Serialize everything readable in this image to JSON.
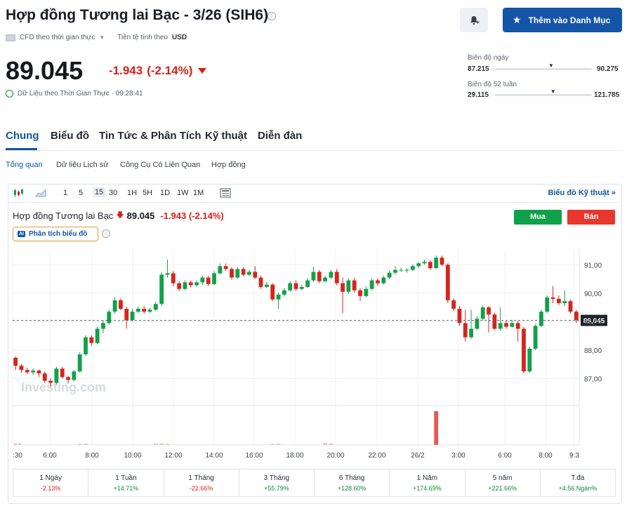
{
  "header": {
    "title": "Hợp đồng Tương lai Bạc - 3/26 (SIH6)",
    "info_icon": "info-icon",
    "bell_icon": "bell-plus-icon",
    "watchlist_label": "Thêm vào Danh Mục",
    "watchlist_icon": "star-icon"
  },
  "subheader": {
    "cfd_label": "CFD theo thời gian thực",
    "currency_label": "Tiền tệ tính theo",
    "currency_value": "USD"
  },
  "quote": {
    "price": "89.045",
    "change": "-1.943",
    "change_pct": "(-2.14%)",
    "realtime_label": "Dữ Liệu theo Thời Gian Thực · 09:28:41",
    "colors": {
      "down": "#d91e18",
      "up": "#0c8a3a"
    }
  },
  "ranges": {
    "day": {
      "label": "Biên độ ngày",
      "low": "87.215",
      "high": "90.275",
      "position": 0.58
    },
    "week52": {
      "label": "Biên độ 52 tuần",
      "low": "29.115",
      "high": "121.785",
      "position": 0.6
    }
  },
  "tabs": [
    {
      "label": "Chung",
      "active": true
    },
    {
      "label": "Biểu đồ",
      "active": false
    },
    {
      "label": "Tin Tức & Phân Tích",
      "active": false
    },
    {
      "label": "Kỹ thuật",
      "active": false
    },
    {
      "label": "Diễn đàn",
      "active": false
    }
  ],
  "subtabs": [
    {
      "label": "Tổng quan",
      "active": true
    },
    {
      "label": "Dữ liệu Lịch sử",
      "active": false
    },
    {
      "label": "Công Cụ Có Liên Quan",
      "active": false
    },
    {
      "label": "Hợp đồng",
      "active": false
    }
  ],
  "toolbar": {
    "intervals": [
      "1",
      "5",
      "15",
      "30",
      "1H",
      "5H",
      "1D",
      "1W",
      "1M"
    ],
    "active_interval": "15",
    "tech_link": "Biểu đồ Kỹ thuật »"
  },
  "chart_header": {
    "name": "Hợp đồng Tương lai Bạc",
    "price": "89.045",
    "change": "-1.943 (-2.14%)",
    "buy_label": "Mua",
    "sell_label": "Bán",
    "ai_badge": "AI",
    "ai_label": "Phân tích biểu đồ",
    "watermark": "Investing.com"
  },
  "chart_data": {
    "type": "candlestick",
    "y_ticks": [
      "91,00",
      "90,00",
      "89,00",
      "88,00",
      "87,00"
    ],
    "ylim": [
      86.05,
      91.55
    ],
    "x_ticks": [
      ":30",
      "6:00",
      "8:00",
      "10:00",
      "12:00",
      "14:00",
      "16:00",
      "18:00",
      "20:00",
      "22:00",
      "26/2",
      "3:00",
      "6:00",
      "8:00",
      "9:3"
    ],
    "last_price_label": "89,045",
    "last_price": 89.045,
    "colors": {
      "up": "#13a04a",
      "down": "#d4261d"
    },
    "candles": [
      [
        87.73,
        87.45,
        87.78,
        87.3
      ],
      [
        87.45,
        87.3,
        87.52,
        87.2
      ],
      [
        87.3,
        87.22,
        87.38,
        87.15
      ],
      [
        87.22,
        87.28,
        87.35,
        87.12
      ],
      [
        87.28,
        87.18,
        87.32,
        87.05
      ],
      [
        87.18,
        86.92,
        87.25,
        86.85
      ],
      [
        86.92,
        86.85,
        87.0,
        86.7
      ],
      [
        86.85,
        87.35,
        87.42,
        86.8
      ],
      [
        87.35,
        87.05,
        87.42,
        87.0
      ],
      [
        87.05,
        86.95,
        87.1,
        86.82
      ],
      [
        86.95,
        87.25,
        87.3,
        86.9
      ],
      [
        87.25,
        87.85,
        87.92,
        87.2
      ],
      [
        87.85,
        88.45,
        88.52,
        87.8
      ],
      [
        88.45,
        88.25,
        88.52,
        88.15
      ],
      [
        88.25,
        88.75,
        88.82,
        88.2
      ],
      [
        88.75,
        88.95,
        89.05,
        88.6
      ],
      [
        88.95,
        89.35,
        89.42,
        88.9
      ],
      [
        89.35,
        89.75,
        89.85,
        89.28
      ],
      [
        89.75,
        89.45,
        89.82,
        89.4
      ],
      [
        89.45,
        89.05,
        89.52,
        88.75
      ],
      [
        89.05,
        89.35,
        89.45,
        89.0
      ],
      [
        89.35,
        89.45,
        89.52,
        89.3
      ],
      [
        89.45,
        89.35,
        89.55,
        89.28
      ],
      [
        89.35,
        89.42,
        89.48,
        89.3
      ],
      [
        89.42,
        89.62,
        89.7,
        89.38
      ],
      [
        89.62,
        90.65,
        90.75,
        89.55
      ],
      [
        90.65,
        90.7,
        91.18,
        90.55
      ],
      [
        90.7,
        90.35,
        90.78,
        90.25
      ],
      [
        90.35,
        90.15,
        90.42,
        90.08
      ],
      [
        90.15,
        90.38,
        90.45,
        90.1
      ],
      [
        90.38,
        90.28,
        90.45,
        90.2
      ],
      [
        90.28,
        90.38,
        90.45,
        90.22
      ],
      [
        90.38,
        90.55,
        90.62,
        90.3
      ],
      [
        90.55,
        90.32,
        90.62,
        90.25
      ],
      [
        90.32,
        90.7,
        90.78,
        90.28
      ],
      [
        90.7,
        90.95,
        91.05,
        90.65
      ],
      [
        90.95,
        90.85,
        91.05,
        90.78
      ],
      [
        90.85,
        90.55,
        90.92,
        90.48
      ],
      [
        90.55,
        90.85,
        90.92,
        90.5
      ],
      [
        90.85,
        90.65,
        90.92,
        90.58
      ],
      [
        90.65,
        90.75,
        90.82,
        90.6
      ],
      [
        90.75,
        90.55,
        90.95,
        90.5
      ],
      [
        90.55,
        90.22,
        90.62,
        90.15
      ],
      [
        90.22,
        90.3,
        90.4,
        90.18
      ],
      [
        90.3,
        89.78,
        90.35,
        89.72
      ],
      [
        89.78,
        89.95,
        90.02,
        89.45
      ],
      [
        89.95,
        90.1,
        90.18,
        89.88
      ],
      [
        90.1,
        90.35,
        90.42,
        90.05
      ],
      [
        90.35,
        90.15,
        90.45,
        90.08
      ],
      [
        90.15,
        90.22,
        90.3,
        90.1
      ],
      [
        90.22,
        90.45,
        90.52,
        90.18
      ],
      [
        90.45,
        90.75,
        90.92,
        90.4
      ],
      [
        90.75,
        90.42,
        90.82,
        90.35
      ],
      [
        90.42,
        90.55,
        90.62,
        90.38
      ],
      [
        90.55,
        90.75,
        90.82,
        90.5
      ],
      [
        90.75,
        90.35,
        90.85,
        90.28
      ],
      [
        90.35,
        90.05,
        90.55,
        89.3
      ],
      [
        90.05,
        90.45,
        90.52,
        89.98
      ],
      [
        90.45,
        90.1,
        90.55,
        90.02
      ],
      [
        90.1,
        89.9,
        90.18,
        89.72
      ],
      [
        89.9,
        90.15,
        90.25,
        89.85
      ],
      [
        90.15,
        90.45,
        90.52,
        90.1
      ],
      [
        90.45,
        90.35,
        90.52,
        90.25
      ],
      [
        90.35,
        90.55,
        90.62,
        90.3
      ],
      [
        90.55,
        90.72,
        90.8,
        90.5
      ],
      [
        90.72,
        90.82,
        90.95,
        90.65
      ],
      [
        90.82,
        90.82,
        90.9,
        90.75
      ],
      [
        90.82,
        90.82,
        90.88,
        90.72
      ],
      [
        90.82,
        90.95,
        91.02,
        90.78
      ],
      [
        90.95,
        91.05,
        91.1,
        90.88
      ],
      [
        91.05,
        91.1,
        91.18,
        91.0
      ],
      [
        91.1,
        90.88,
        91.15,
        90.82
      ],
      [
        90.88,
        91.25,
        91.32,
        90.85
      ],
      [
        91.25,
        91.0,
        91.32,
        90.95
      ],
      [
        91.0,
        89.75,
        91.05,
        89.65
      ],
      [
        89.75,
        89.45,
        89.82,
        89.38
      ],
      [
        89.45,
        88.95,
        89.55,
        88.85
      ],
      [
        88.95,
        88.45,
        89.42,
        88.3
      ],
      [
        88.45,
        88.75,
        89.42,
        88.4
      ],
      [
        88.75,
        89.1,
        89.18,
        88.7
      ],
      [
        89.1,
        89.5,
        89.58,
        89.05
      ],
      [
        89.5,
        89.25,
        89.55,
        88.62
      ],
      [
        89.25,
        88.75,
        89.32,
        88.7
      ],
      [
        88.75,
        88.95,
        89.5,
        88.68
      ],
      [
        88.95,
        88.82,
        89.02,
        88.75
      ],
      [
        88.82,
        88.95,
        89.05,
        88.8
      ],
      [
        88.95,
        88.75,
        89.02,
        88.3
      ],
      [
        88.75,
        87.25,
        88.82,
        87.18
      ],
      [
        87.25,
        88.05,
        88.12,
        87.2
      ],
      [
        88.05,
        88.85,
        88.92,
        88.0
      ],
      [
        88.85,
        89.35,
        89.42,
        88.8
      ],
      [
        89.35,
        89.85,
        89.92,
        89.3
      ],
      [
        89.85,
        89.8,
        90.25,
        89.65
      ],
      [
        89.8,
        89.65,
        89.92,
        89.58
      ],
      [
        89.65,
        89.72,
        90.1,
        89.55
      ],
      [
        89.72,
        89.35,
        89.78,
        89.28
      ],
      [
        89.35,
        89.05,
        89.42,
        88.95
      ]
    ],
    "volume": [
      1,
      1,
      0,
      0,
      0,
      0,
      0,
      0,
      0,
      0,
      0,
      0,
      0,
      0,
      0,
      0,
      0,
      0,
      0,
      0,
      0,
      0,
      0,
      0,
      0,
      0,
      0,
      0,
      0,
      0,
      0,
      0,
      0,
      0,
      0,
      0,
      0,
      0,
      0,
      0,
      0,
      0,
      0,
      0,
      0,
      0,
      0,
      0,
      0,
      0,
      0,
      0,
      0,
      0,
      0,
      0,
      0,
      0,
      0,
      0,
      0,
      0,
      0,
      0,
      0,
      0,
      0,
      0,
      0,
      0,
      0,
      0,
      0,
      0,
      0,
      0,
      0,
      0,
      0,
      0,
      0,
      0,
      0,
      0,
      0,
      0,
      0,
      0,
      0,
      0,
      0,
      0,
      0,
      0,
      0,
      0,
      0
    ],
    "volume_highlights": [
      {
        "index": 11,
        "value": 3
      },
      {
        "index": 12,
        "value": 3
      },
      {
        "index": 24,
        "value": 4
      },
      {
        "index": 25,
        "value": 4
      },
      {
        "index": 26,
        "value": 3
      },
      {
        "index": 44,
        "value": 3
      },
      {
        "index": 45,
        "value": 3
      },
      {
        "index": 53,
        "value": 5
      },
      {
        "index": 54,
        "value": 4
      },
      {
        "index": 72,
        "value": 100
      }
    ]
  },
  "performance": [
    {
      "label": "1 Ngày",
      "value": "-2.13%",
      "dir": "down"
    },
    {
      "label": "1 Tuần",
      "value": "+14.71%",
      "dir": "up"
    },
    {
      "label": "1 Tháng",
      "value": "-22.66%",
      "dir": "down"
    },
    {
      "label": "3 Tháng",
      "value": "+55.79%",
      "dir": "up"
    },
    {
      "label": "6 Tháng",
      "value": "+128.60%",
      "dir": "up"
    },
    {
      "label": "1 Năm",
      "value": "+174.69%",
      "dir": "up"
    },
    {
      "label": "5 năm",
      "value": "+221.66%",
      "dir": "up"
    },
    {
      "label": "T.đa",
      "value": "+4.56 Ngàn%",
      "dir": "up"
    }
  ]
}
